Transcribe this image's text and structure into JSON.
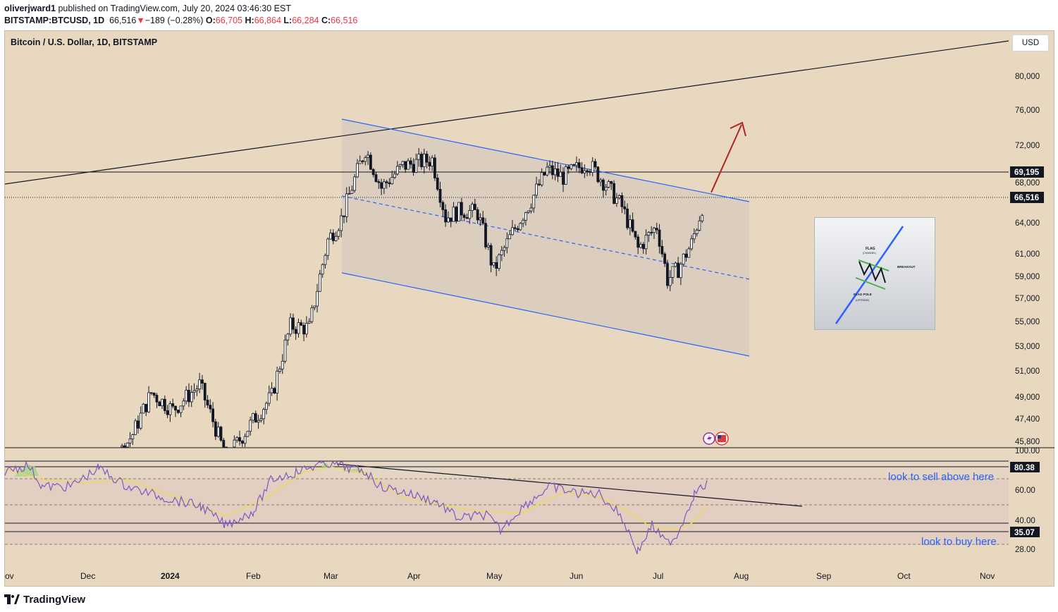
{
  "header": {
    "publisher": "oliverjward1",
    "published_text": "published on TradingView.com, July 20, 2024 03:46:30 EST",
    "symbol": "BITSTAMP:BTCUSD, 1D",
    "last": "66,516",
    "change_arrow": "▼",
    "change": "−189 (−0.28%)",
    "o_label": "O:",
    "o_value": "66,705",
    "h_label": "H:",
    "h_value": "66,864",
    "l_label": "L:",
    "l_value": "66,284",
    "c_label": "C:",
    "c_value": "66,516"
  },
  "chart_title": "Bitcoin / U.S. Dollar, 1D, BITSTAMP",
  "currency_button": "USD",
  "footer": {
    "brand": "TradingView"
  },
  "inset": {
    "flag_label": "FLAG",
    "channel_label": "(CHANNEL)",
    "breakout_label": "BREAKOUT",
    "pole_label": "FLAG POLE",
    "uptrend_label": "(UPTREND)"
  },
  "annotations": {
    "sell_note": "look to sell above here",
    "buy_note": "look to buy here"
  },
  "colors": {
    "background": "#e8d8bf",
    "candle": "#131722",
    "channel": "#2962ff",
    "arrow": "#b22222",
    "rsi": "#7e57c2",
    "rsi_ma": "#f0d94a",
    "note": "#2962ff",
    "down": "#f23645"
  },
  "chart_data": [
    {
      "type": "candlestick",
      "title": "Bitcoin / U.S. Dollar, 1D, BITSTAMP",
      "y_scale": "log",
      "x_ticks": [
        "ov",
        "Dec",
        "2024",
        "Feb",
        "Mar",
        "Apr",
        "May",
        "Jun",
        "Jul",
        "Aug",
        "Sep",
        "Oct",
        "Nov"
      ],
      "y_ticks": [
        "80,000",
        "76,000",
        "72,000",
        "68,000",
        "64,000",
        "61,000",
        "59,000",
        "57,000",
        "55,000",
        "53,000",
        "51,000",
        "49,000",
        "47,400",
        "45,800"
      ],
      "price_labels": [
        {
          "text": "69,195",
          "value": 69195
        },
        {
          "text": "66,516",
          "value": 66516
        }
      ],
      "series": [
        {
          "dates": [
            "2024-02-01",
            "2024-02-08",
            "2024-02-15",
            "2024-02-22",
            "2024-02-29",
            "2024-03-05",
            "2024-03-14",
            "2024-03-20",
            "2024-03-28",
            "2024-04-08",
            "2024-04-13",
            "2024-04-19",
            "2024-04-25",
            "2024-05-01",
            "2024-05-08",
            "2024-05-15",
            "2024-05-21",
            "2024-05-27",
            "2024-06-05",
            "2024-06-12",
            "2024-06-18",
            "2024-06-24",
            "2024-07-01",
            "2024-07-05",
            "2024-07-09",
            "2024-07-14",
            "2024-07-17",
            "2024-07-19"
          ],
          "close": [
            43100,
            45200,
            51800,
            51600,
            61200,
            63800,
            73000,
            67800,
            70700,
            71600,
            64000,
            64900,
            64500,
            57700,
            62100,
            66100,
            70200,
            69200,
            71200,
            68200,
            65300,
            60200,
            62900,
            56700,
            57900,
            60800,
            64100,
            66516
          ]
        }
      ],
      "ylim": [
        45000,
        82000
      ]
    },
    {
      "type": "line",
      "name": "RSI",
      "y_ticks": [
        "100.00",
        "60.00",
        "40.00",
        "28.00"
      ],
      "levels": [
        {
          "text": "80.38",
          "value": 80.38
        },
        {
          "text": "35.07",
          "value": 35.07
        }
      ],
      "ylim": [
        20,
        100
      ]
    }
  ]
}
